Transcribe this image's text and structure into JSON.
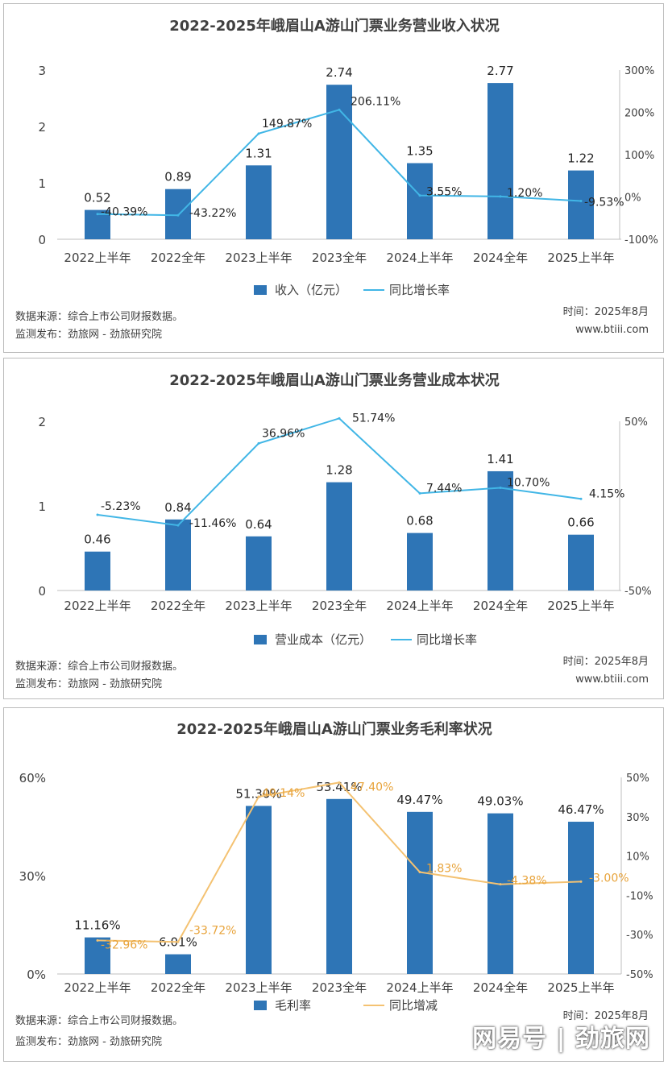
{
  "chart_data": [
    {
      "type": "bar",
      "title": "2022-2025年峨眉山A游山门票业务营业收入状况",
      "categories": [
        "2022上半年",
        "2022全年",
        "2023上半年",
        "2023全年",
        "2024上半年",
        "2024全年",
        "2025上半年"
      ],
      "series": [
        {
          "name": "收入（亿元）",
          "type": "bar",
          "axis": "left",
          "values": [
            0.52,
            0.89,
            1.31,
            2.74,
            1.35,
            2.77,
            1.22
          ],
          "labels": [
            "0.52",
            "0.89",
            "1.31",
            "2.74",
            "1.35",
            "2.77",
            "1.22"
          ]
        },
        {
          "name": "同比增长率",
          "type": "line",
          "axis": "right",
          "values": [
            -40.39,
            -43.22,
            149.87,
            206.11,
            3.55,
            1.2,
            -9.53
          ],
          "labels": [
            "-40.39%",
            "-43.22%",
            "149.87%",
            "206.11%",
            "3.55%",
            "1.20%",
            "-9.53%"
          ]
        }
      ],
      "yleft": {
        "min": 0,
        "max": 3,
        "ticks": [
          0,
          1,
          2,
          3
        ],
        "tick_labels": [
          "0",
          "1",
          "2",
          "3"
        ]
      },
      "yright": {
        "min": -100,
        "max": 300,
        "ticks": [
          -100,
          0,
          100,
          200,
          300
        ],
        "tick_labels": [
          "-100%",
          "0%",
          "100%",
          "200%",
          "300%"
        ]
      },
      "bar_color": "#2e75b6",
      "line_color": "#41b6e6",
      "legend": "bottom",
      "source": "数据来源：综合上市公司财报数据。",
      "publisher": "监测发布：劲旅网 - 劲旅研究院",
      "date": "时间：2025年8月",
      "website": "www.btiii.com"
    },
    {
      "type": "bar",
      "title": "2022-2025年峨眉山A游山门票业务营业成本状况",
      "categories": [
        "2022上半年",
        "2022全年",
        "2023上半年",
        "2023全年",
        "2024上半年",
        "2024全年",
        "2025上半年"
      ],
      "series": [
        {
          "name": "营业成本（亿元）",
          "type": "bar",
          "axis": "left",
          "values": [
            0.46,
            0.84,
            0.64,
            1.28,
            0.68,
            1.41,
            0.66
          ],
          "labels": [
            "0.46",
            "0.84",
            "0.64",
            "1.28",
            "0.68",
            "1.41",
            "0.66"
          ]
        },
        {
          "name": "同比增长率",
          "type": "line",
          "axis": "right",
          "values": [
            -5.23,
            -11.46,
            36.96,
            51.74,
            7.44,
            10.7,
            4.15
          ],
          "labels": [
            "-5.23%",
            "-11.46%",
            "36.96%",
            "51.74%",
            "7.44%",
            "10.70%",
            "4.15%"
          ]
        }
      ],
      "yleft": {
        "min": 0,
        "max": 2,
        "ticks": [
          0,
          1,
          2
        ],
        "tick_labels": [
          "0",
          "1",
          "2"
        ]
      },
      "yright": {
        "min": -50,
        "max": 50,
        "ticks": [
          -50,
          50
        ],
        "tick_labels": [
          "-50%",
          "50%"
        ]
      },
      "bar_color": "#2e75b6",
      "line_color": "#41b6e6",
      "legend": "bottom",
      "source": "数据来源：综合上市公司财报数据。",
      "publisher": "监测发布：劲旅网 - 劲旅研究院",
      "date": "时间：2025年8月",
      "website": "www.btiii.com"
    },
    {
      "type": "bar",
      "title": "2022-2025年峨眉山A游山门票业务毛利率状况",
      "categories": [
        "2022上半年",
        "2022全年",
        "2023上半年",
        "2023全年",
        "2024上半年",
        "2024全年",
        "2025上半年"
      ],
      "series": [
        {
          "name": "毛利率",
          "type": "bar",
          "axis": "left",
          "values": [
            11.16,
            6.01,
            51.3,
            53.41,
            49.47,
            49.03,
            46.47
          ],
          "labels": [
            "11.16%",
            "6.01%",
            "51.30%",
            "53.41%",
            "49.47%",
            "49.03%",
            "46.47%"
          ]
        },
        {
          "name": "同比增减",
          "type": "line",
          "axis": "right",
          "values": [
            -32.96,
            -33.72,
            40.14,
            47.4,
            1.83,
            -4.38,
            -3.0
          ],
          "labels": [
            "-32.96%",
            "-33.72%",
            "40.14%",
            "47.40%",
            "1.83%",
            "-4.38%",
            "-3.00%"
          ]
        }
      ],
      "yleft": {
        "min": 0,
        "max": 60,
        "ticks": [
          0,
          30,
          60
        ],
        "tick_labels": [
          "0%",
          "30%",
          "60%"
        ]
      },
      "yright": {
        "min": -50,
        "max": 50,
        "ticks": [
          -50,
          -30,
          -10,
          10,
          30,
          50
        ],
        "tick_labels": [
          "-50%",
          "-30%",
          "-10%",
          "10%",
          "30%",
          "50%"
        ]
      },
      "bar_color": "#2e75b6",
      "line_color": "#f4c272",
      "legend": "bottom",
      "source": "数据来源：综合上市公司财报数据。",
      "publisher": "监测发布：劲旅网 - 劲旅研究院",
      "date": "时间：2025年8月",
      "website": "www.btiii.com"
    }
  ],
  "watermark": "网易号 | 劲旅网"
}
